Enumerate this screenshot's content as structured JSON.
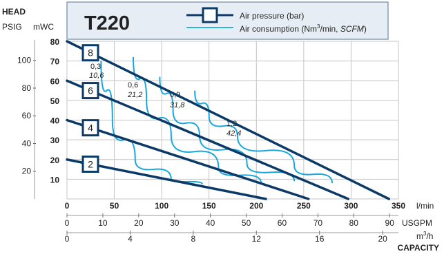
{
  "chart_data": {
    "type": "line",
    "title": "T220",
    "head_label": "HEAD",
    "left_axes": {
      "psig_label": "PSIG",
      "mwc_label": "mWC",
      "psig_ticks": [
        "100",
        "80",
        "60",
        "40",
        "20"
      ],
      "mwc_ticks": [
        "80",
        "70",
        "60",
        "50",
        "40",
        "30",
        "20",
        "10"
      ],
      "mwc_range": [
        0,
        80
      ]
    },
    "bottom_axes": {
      "lmin_unit": "l/min",
      "lmin_ticks": [
        "0",
        "50",
        "100",
        "150",
        "200",
        "250",
        "300",
        "350"
      ],
      "lmin_range": [
        0,
        350
      ],
      "usgpm_unit": "USGPM",
      "usgpm_ticks": [
        "0",
        "10",
        "20",
        "30",
        "40",
        "50",
        "60",
        "70",
        "80",
        "90"
      ],
      "m3h_unit_base": "m",
      "m3h_unit_sup": "3",
      "m3h_unit_tail": "/h",
      "m3h_ticks": [
        "0",
        "4",
        "8",
        "12",
        "16",
        "20"
      ],
      "capacity_label": "CAPACITY"
    },
    "legend": {
      "pressure_label": "Air pressure (bar)",
      "consumption_pre": "Air consumption (Nm",
      "consumption_sup": "3",
      "consumption_mid": "/min, ",
      "consumption_italic": "SCFM",
      "consumption_post": ")"
    },
    "colors": {
      "pressure_line": "#0b3a66",
      "consumption_line": "#19a7dc",
      "header_box_bg": "#e6edf4",
      "header_box_border": "#6b8aa6",
      "grid": "#c4c4c4"
    },
    "pressure_curves": [
      {
        "label": "8",
        "points": [
          [
            0,
            80
          ],
          [
            340,
            0
          ]
        ]
      },
      {
        "label": "6",
        "points": [
          [
            0,
            60
          ],
          [
            297,
            0
          ]
        ]
      },
      {
        "label": "4",
        "points": [
          [
            0,
            40
          ],
          [
            255,
            0
          ]
        ]
      },
      {
        "label": "2",
        "points": [
          [
            0,
            20
          ],
          [
            210,
            0
          ]
        ]
      }
    ],
    "consumption_curves": [
      {
        "label_top": "0,3",
        "label_bottom": "10,6",
        "points": [
          [
            36,
            70
          ],
          [
            48,
            40
          ],
          [
            72,
            20
          ],
          [
            110,
            10
          ],
          [
            143,
            7.5
          ]
        ]
      },
      {
        "label_top": "0,6",
        "label_bottom": "21,2",
        "points": [
          [
            70,
            72
          ],
          [
            84,
            50
          ],
          [
            110,
            32
          ],
          [
            160,
            16
          ],
          [
            205,
            8
          ]
        ]
      },
      {
        "label_top": "0,9",
        "label_bottom": "31,8",
        "points": [
          [
            98,
            62
          ],
          [
            112,
            45
          ],
          [
            140,
            32
          ],
          [
            190,
            18
          ],
          [
            240,
            9
          ]
        ]
      },
      {
        "label_top": "1,2",
        "label_bottom": "42,4",
        "points": [
          [
            135,
            55
          ],
          [
            150,
            42
          ],
          [
            180,
            32
          ],
          [
            240,
            17
          ],
          [
            280,
            8
          ]
        ]
      }
    ]
  }
}
